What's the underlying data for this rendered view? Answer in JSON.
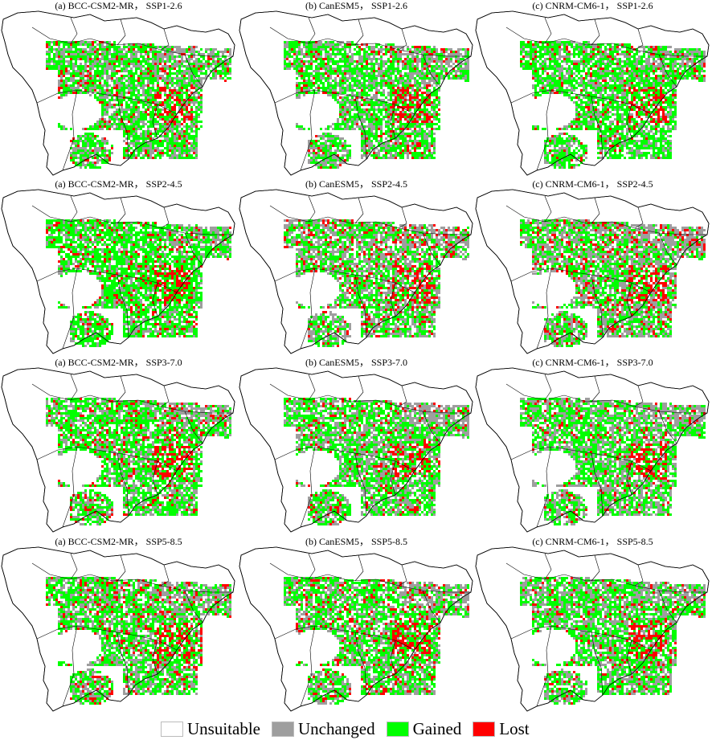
{
  "panels": [
    {
      "title": "(a) BCC-CSM2-MR， SSP1-2.6",
      "model": "BCC-CSM2-MR",
      "scenario": "SSP1-2.6"
    },
    {
      "title": "(b) CanESM5， SSP1-2.6",
      "model": "CanESM5",
      "scenario": "SSP1-2.6"
    },
    {
      "title": "(c) CNRM-CM6-1， SSP1-2.6",
      "model": "CNRM-CM6-1",
      "scenario": "SSP1-2.6"
    },
    {
      "title": "(a) BCC-CSM2-MR， SSP2-4.5",
      "model": "BCC-CSM2-MR",
      "scenario": "SSP2-4.5"
    },
    {
      "title": "(b) CanESM5， SSP2-4.5",
      "model": "CanESM5",
      "scenario": "SSP2-4.5"
    },
    {
      "title": "(c) CNRM-CM6-1， SSP2-4.5",
      "model": "CNRM-CM6-1",
      "scenario": "SSP2-4.5"
    },
    {
      "title": "(a) BCC-CSM2-MR， SSP3-7.0",
      "model": "BCC-CSM2-MR",
      "scenario": "SSP3-7.0"
    },
    {
      "title": "(b) CanESM5， SSP3-7.0",
      "model": "CanESM5",
      "scenario": "SSP3-7.0"
    },
    {
      "title": "(c) CNRM-CM6-1， SSP3-7.0",
      "model": "CNRM-CM6-1",
      "scenario": "SSP3-7.0"
    },
    {
      "title": "(a) BCC-CSM2-MR， SSP5-8.5",
      "model": "BCC-CSM2-MR",
      "scenario": "SSP5-8.5"
    },
    {
      "title": "(b) CanESM5， SSP5-8.5",
      "model": "CanESM5",
      "scenario": "SSP5-8.5"
    },
    {
      "title": "(c) CNRM-CM6-1， SSP5-8.5",
      "model": "CNRM-CM6-1",
      "scenario": "SSP5-8.5"
    }
  ],
  "legend": [
    {
      "label": "Unsuitable",
      "color": "#ffffff"
    },
    {
      "label": "Unchanged",
      "color": "#9e9e9e"
    },
    {
      "label": "Gained",
      "color": "#00ff00"
    },
    {
      "label": "Lost",
      "color": "#ff0000"
    }
  ]
}
